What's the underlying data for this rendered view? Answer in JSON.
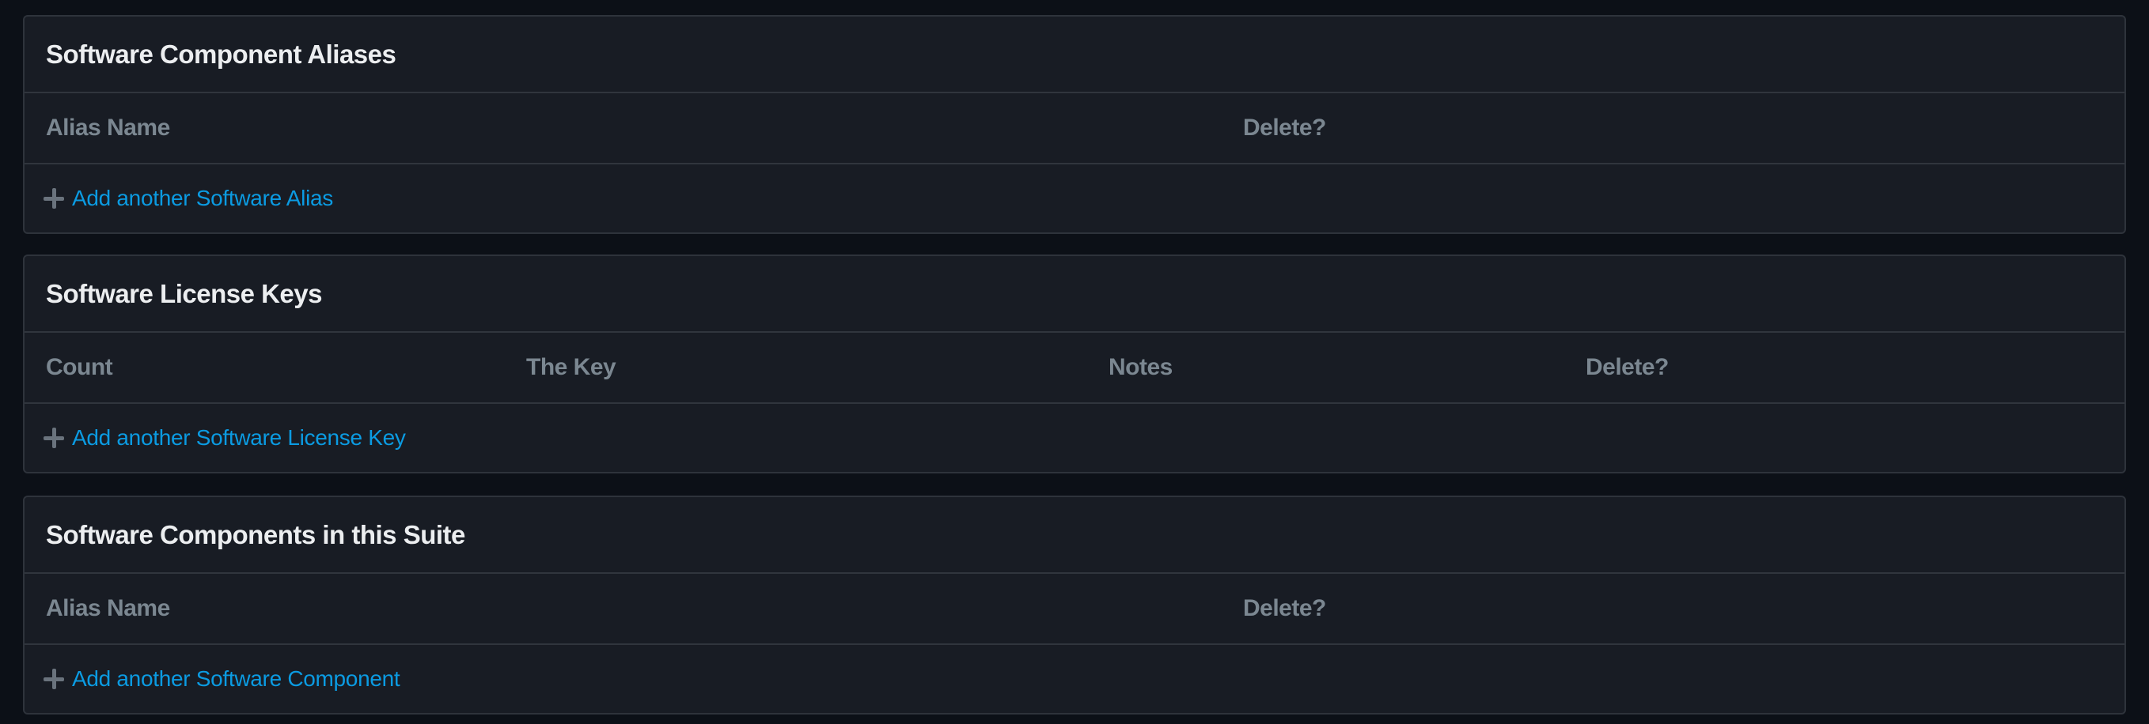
{
  "aliases": {
    "title": "Software Component Aliases",
    "columns": [
      "Alias Name",
      "Delete?"
    ],
    "add_label": "Add another Software Alias"
  },
  "license_keys": {
    "title": "Software License Keys",
    "columns": [
      "Count",
      "The Key",
      "Notes",
      "Delete?"
    ],
    "add_label": "Add another Software License Key"
  },
  "components": {
    "title": "Software Components in this Suite",
    "columns": [
      "Alias Name",
      "Delete?"
    ],
    "add_label": "Add another Software Component"
  },
  "colors": {
    "accent": "#0b9be2",
    "background": "#0c1017",
    "panel": "#181c24"
  }
}
